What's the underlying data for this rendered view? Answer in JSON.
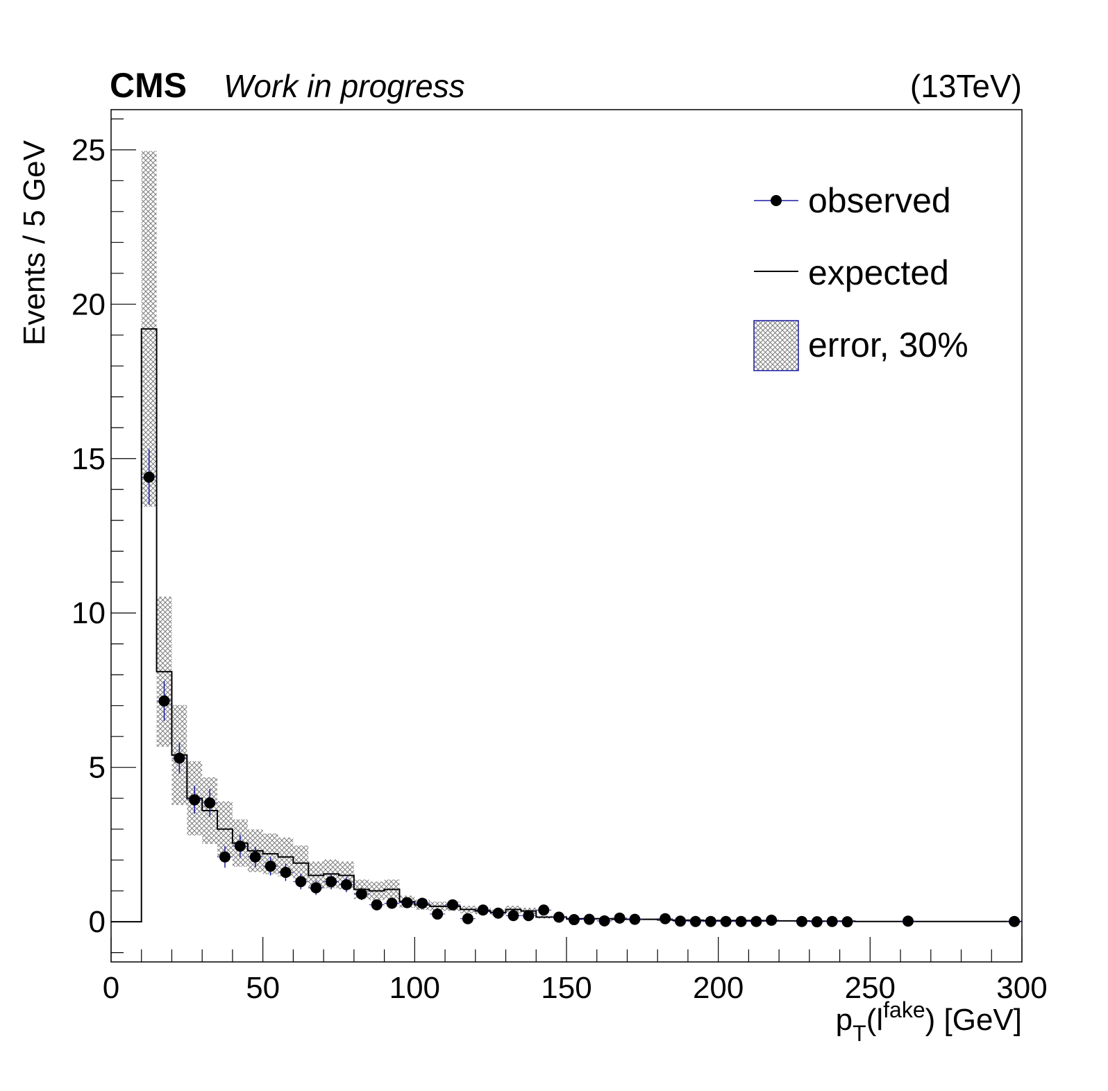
{
  "header": {
    "experiment": "CMS",
    "status": "Work in progress",
    "energy": "(13TeV)"
  },
  "axes": {
    "xlabel_main": "p",
    "xlabel_sub": "T",
    "xlabel_open": "(l",
    "xlabel_sup": "fake",
    "xlabel_close": ") [GeV]",
    "ylabel": "Events / 5 GeV"
  },
  "legend": {
    "observed": "observed",
    "expected": "expected",
    "error": "error, 30%"
  },
  "colors": {
    "marker": "#000000",
    "error_bar": "#1a1aa6",
    "band": "#808080",
    "legend_box_border": "#1a1aa6",
    "frame": "#000000"
  },
  "chart_data": {
    "type": "histogram",
    "title": "",
    "xlabel": "p_T(l^fake) [GeV]",
    "ylabel": "Events / 5 GeV",
    "xlim": [
      0,
      300
    ],
    "ylim": [
      -1.3,
      26.3
    ],
    "xticks": [
      0,
      50,
      100,
      150,
      200,
      250,
      300
    ],
    "yticks": [
      0,
      5,
      10,
      15,
      20,
      25
    ],
    "bin_width": 5,
    "legend_position": "top-right",
    "grid": false,
    "expected": {
      "name": "expected",
      "bin_edges": [
        0,
        10,
        15,
        20,
        25,
        30,
        35,
        40,
        45,
        50,
        55,
        60,
        65,
        70,
        75,
        80,
        85,
        90,
        95,
        100,
        105,
        110,
        115,
        120,
        125,
        130,
        135,
        140,
        145,
        150,
        155,
        160,
        165,
        170,
        175,
        180,
        185,
        190,
        195,
        200,
        205,
        210,
        215,
        220,
        225,
        230,
        235,
        240,
        245,
        300
      ],
      "values": [
        0,
        19.2,
        8.1,
        5.4,
        4.0,
        3.6,
        3.0,
        2.55,
        2.3,
        2.2,
        2.1,
        1.9,
        1.5,
        1.55,
        1.5,
        1.05,
        1.0,
        1.05,
        0.65,
        0.55,
        0.5,
        0.5,
        0.4,
        0.35,
        0.3,
        0.4,
        0.35,
        0.15,
        0.15,
        0.1,
        0.1,
        0.1,
        0.08,
        0.08,
        0.08,
        0.06,
        0.05,
        0.05,
        0.04,
        0.04,
        0.04,
        0.04,
        0.03,
        0.03,
        0.03,
        0.02,
        0.02,
        0.02,
        0.01
      ]
    },
    "error_band": {
      "name": "error, 30%",
      "relative_uncertainty": 0.3
    },
    "observed": {
      "name": "observed",
      "x": [
        12.5,
        17.5,
        22.5,
        27.5,
        32.5,
        37.5,
        42.5,
        47.5,
        52.5,
        57.5,
        62.5,
        67.5,
        72.5,
        77.5,
        82.5,
        87.5,
        92.5,
        97.5,
        102.5,
        107.5,
        112.5,
        117.5,
        122.5,
        127.5,
        132.5,
        137.5,
        142.5,
        147.5,
        152.5,
        157.5,
        162.5,
        167.5,
        172.5,
        182.5,
        187.5,
        192.5,
        197.5,
        202.5,
        207.5,
        212.5,
        217.5,
        227.5,
        232.5,
        237.5,
        242.5,
        262.5,
        297.5
      ],
      "y": [
        14.4,
        7.15,
        5.3,
        3.95,
        3.85,
        2.1,
        2.45,
        2.1,
        1.8,
        1.6,
        1.3,
        1.1,
        1.3,
        1.2,
        0.9,
        0.55,
        0.6,
        0.62,
        0.6,
        0.25,
        0.55,
        0.1,
        0.38,
        0.28,
        0.2,
        0.2,
        0.38,
        0.15,
        0.07,
        0.08,
        0.03,
        0.12,
        0.08,
        0.1,
        0.02,
        0.01,
        0.01,
        0.01,
        0.01,
        0.01,
        0.05,
        0.01,
        0.0,
        0.01,
        0.0,
        0.02,
        0.01
      ],
      "yerr": [
        0.9,
        0.65,
        0.5,
        0.45,
        0.45,
        0.35,
        0.37,
        0.33,
        0.3,
        0.28,
        0.25,
        0.23,
        0.25,
        0.24,
        0.2,
        0.15,
        0.16,
        0.16,
        0.15,
        0.1,
        0.15,
        0.06,
        0.12,
        0.1,
        0.09,
        0.09,
        0.12,
        0.07,
        0.05,
        0.05,
        0.03,
        0.06,
        0.05,
        0.05,
        0.02,
        0.02,
        0.02,
        0.02,
        0.02,
        0.02,
        0.04,
        0.02,
        0.0,
        0.02,
        0.0,
        0.02,
        0.02
      ]
    }
  }
}
